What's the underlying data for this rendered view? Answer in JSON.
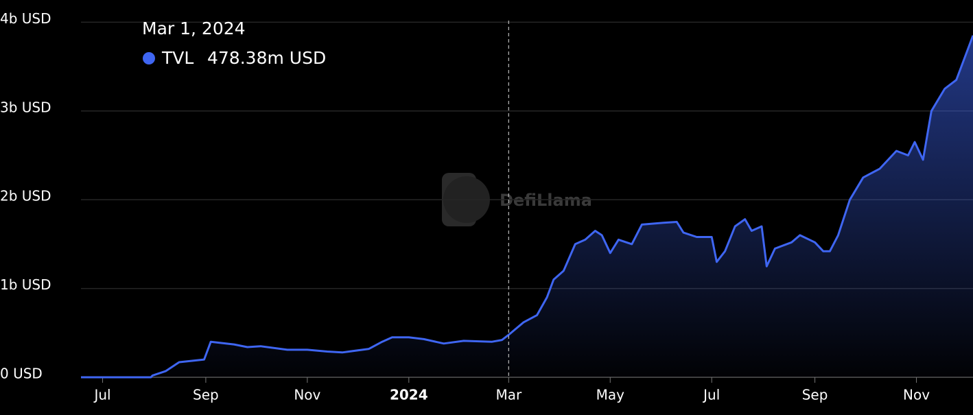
{
  "chart_data": {
    "type": "line",
    "watermark": "DefiLlama",
    "x": [
      "2023-06-18",
      "2023-07-30",
      "2023-07-31",
      "2023-08-08",
      "2023-08-16",
      "2023-08-31",
      "2023-09-04",
      "2023-09-18",
      "2023-09-26",
      "2023-10-04",
      "2023-10-20",
      "2023-11-01",
      "2023-11-13",
      "2023-11-22",
      "2023-12-08",
      "2023-12-16",
      "2023-12-22",
      "2024-01-01",
      "2024-01-10",
      "2024-01-22",
      "2024-02-03",
      "2024-02-20",
      "2024-02-26",
      "2024-03-01",
      "2024-03-10",
      "2024-03-18",
      "2024-03-24",
      "2024-03-28",
      "2024-04-03",
      "2024-04-10",
      "2024-04-16",
      "2024-04-22",
      "2024-04-26",
      "2024-05-01",
      "2024-05-06",
      "2024-05-14",
      "2024-05-20",
      "2024-06-02",
      "2024-06-10",
      "2024-06-14",
      "2024-06-22",
      "2024-07-01",
      "2024-07-04",
      "2024-07-09",
      "2024-07-15",
      "2024-07-21",
      "2024-07-25",
      "2024-07-31",
      "2024-08-03",
      "2024-08-08",
      "2024-08-18",
      "2024-08-23",
      "2024-09-01",
      "2024-09-06",
      "2024-09-10",
      "2024-09-15",
      "2024-09-22",
      "2024-09-30",
      "2024-10-10",
      "2024-10-20",
      "2024-10-27",
      "2024-10-31",
      "2024-11-05",
      "2024-11-10",
      "2024-11-18",
      "2024-11-25",
      "2024-12-01",
      "2024-12-05"
    ],
    "series": [
      {
        "name": "TVL",
        "color": "#3f66f2",
        "values": [
          0,
          0,
          20000000,
          70000000,
          170000000,
          200000000,
          400000000,
          370000000,
          340000000,
          350000000,
          310000000,
          310000000,
          290000000,
          280000000,
          320000000,
          400000000,
          450000000,
          450000000,
          430000000,
          380000000,
          410000000,
          400000000,
          420000000,
          478380000,
          620000000,
          700000000,
          900000000,
          1100000000,
          1200000000,
          1500000000,
          1550000000,
          1650000000,
          1600000000,
          1400000000,
          1550000000,
          1500000000,
          1720000000,
          1740000000,
          1750000000,
          1630000000,
          1580000000,
          1580000000,
          1300000000,
          1420000000,
          1700000000,
          1780000000,
          1650000000,
          1700000000,
          1250000000,
          1450000000,
          1520000000,
          1600000000,
          1520000000,
          1420000000,
          1420000000,
          1600000000,
          2000000000,
          2250000000,
          2350000000,
          2550000000,
          2500000000,
          2650000000,
          2450000000,
          3000000000,
          3250000000,
          3350000000,
          3650000000,
          3850000000
        ]
      }
    ],
    "xlim": [
      "2023-06-18",
      "2024-12-05"
    ],
    "xticks": [
      {
        "value": "2023-07-01",
        "label": "Jul"
      },
      {
        "value": "2023-09-01",
        "label": "Sep"
      },
      {
        "value": "2023-11-01",
        "label": "Nov"
      },
      {
        "value": "2024-01-01",
        "label": "2024"
      },
      {
        "value": "2024-03-01",
        "label": "Mar"
      },
      {
        "value": "2024-05-01",
        "label": "May"
      },
      {
        "value": "2024-07-01",
        "label": "Jul"
      },
      {
        "value": "2024-09-01",
        "label": "Sep"
      },
      {
        "value": "2024-11-01",
        "label": "Nov"
      }
    ],
    "ylim": [
      0,
      4250000000
    ],
    "yticks": [
      {
        "value": 0,
        "label": "0 USD"
      },
      {
        "value": 1000000000,
        "label": "1b USD"
      },
      {
        "value": 2000000000,
        "label": "2b USD"
      },
      {
        "value": 3000000000,
        "label": "3b USD"
      },
      {
        "value": 4000000000,
        "label": "4b USD"
      }
    ],
    "grid": true,
    "tooltip": {
      "x": "2024-03-01",
      "date": "Mar 1, 2024",
      "value": 478380000,
      "value_label": "478.38m USD"
    }
  }
}
